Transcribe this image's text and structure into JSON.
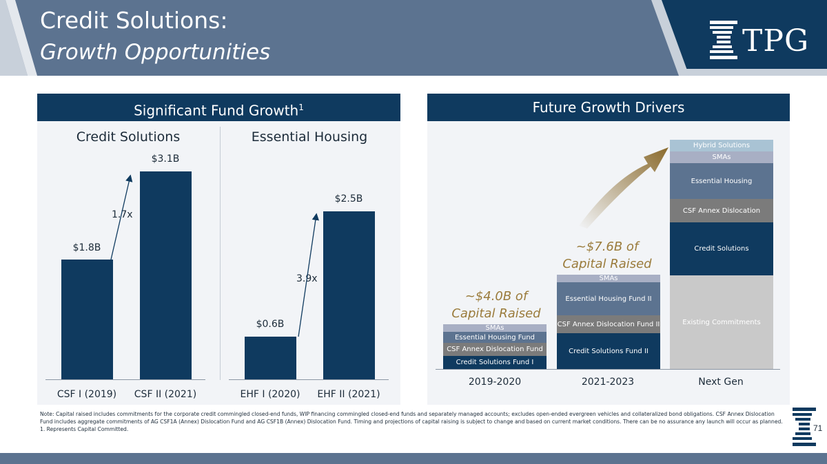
{
  "header": {
    "title_line1": "Credit Solutions:",
    "title_line2": "Growth Opportunities",
    "logo_text": "TPG"
  },
  "left_panel": {
    "heading": "Significant Fund Growth",
    "heading_footnote": "1",
    "credit_solutions": {
      "title": "Credit Solutions",
      "multiple": "1.7x",
      "bars": [
        {
          "label": "CSF I (2019)",
          "value_label": "$1.8B",
          "value": 1.8
        },
        {
          "label": "CSF II (2021)",
          "value_label": "$3.1B",
          "value": 3.1
        }
      ]
    },
    "essential_housing": {
      "title": "Essential Housing",
      "multiple": "3.9x",
      "bars": [
        {
          "label": "EHF I (2020)",
          "value_label": "$0.6B",
          "value": 0.6
        },
        {
          "label": "EHF II (2021)",
          "value_label": "$2.5B",
          "value": 2.5
        }
      ]
    }
  },
  "right_panel": {
    "heading": "Future Growth Drivers",
    "periods": [
      "2019-2020",
      "2021-2023",
      "Next Gen"
    ],
    "caption_2019": {
      "line1": "~$4.0B of",
      "line2": "Capital Raised"
    },
    "caption_2021": {
      "line1": "~$7.6B of",
      "line2": "Capital Raised"
    },
    "stack_2019": {
      "smas": "SMAs",
      "essential_housing": "Essential Housing Fund",
      "csf_annex": "CSF Annex Dislocation Fund",
      "credit_solutions": "Credit Solutions Fund I"
    },
    "stack_2021": {
      "smas": "SMAs",
      "essential_housing": "Essential Housing Fund  II",
      "csf_annex": "CSF Annex Dislocation Fund II",
      "credit_solutions": "Credit Solutions Fund II"
    },
    "stack_next": {
      "hybrid": "Hybrid Solutions",
      "smas": "SMAs",
      "essential_housing": "Essential Housing",
      "csf_annex": "CSF Annex Dislocation",
      "credit_solutions": "Credit Solutions",
      "existing": "Existing Commitments"
    }
  },
  "chart_data": [
    {
      "type": "bar",
      "title": "Credit Solutions",
      "categories": [
        "CSF I (2019)",
        "CSF II (2021)"
      ],
      "values": [
        1.8,
        3.1
      ],
      "ylabel": "$B",
      "annotation": "1.7x"
    },
    {
      "type": "bar",
      "title": "Essential Housing",
      "categories": [
        "EHF I (2020)",
        "EHF II (2021)"
      ],
      "values": [
        0.6,
        2.5
      ],
      "ylabel": "$B",
      "annotation": "3.9x"
    }
  ],
  "footnote": {
    "note": "Note: Capital raised includes commitments for the corporate credit commingled closed-end funds, WIP financing commingled closed-end funds and separately managed accounts; excludes open-ended evergreen vehicles and collateralized bond obligations. CSF Annex Dislocation Fund includes aggregate commitments of AG CSF1A (Annex) Dislocation Fund and AG CSF1B (Annex) Dislocation Fund. Timing and projections of capital raising is subject to change and based on current market conditions. There can be no assurance any launch will occur as planned.",
    "footnote_1": "1. Represents Capital Committed."
  },
  "page_number": "71",
  "colors": {
    "navy": "#0f3a5f",
    "slate": "#5c7390",
    "gold": "#9a7b3b",
    "panel_bg": "#f2f4f7"
  }
}
